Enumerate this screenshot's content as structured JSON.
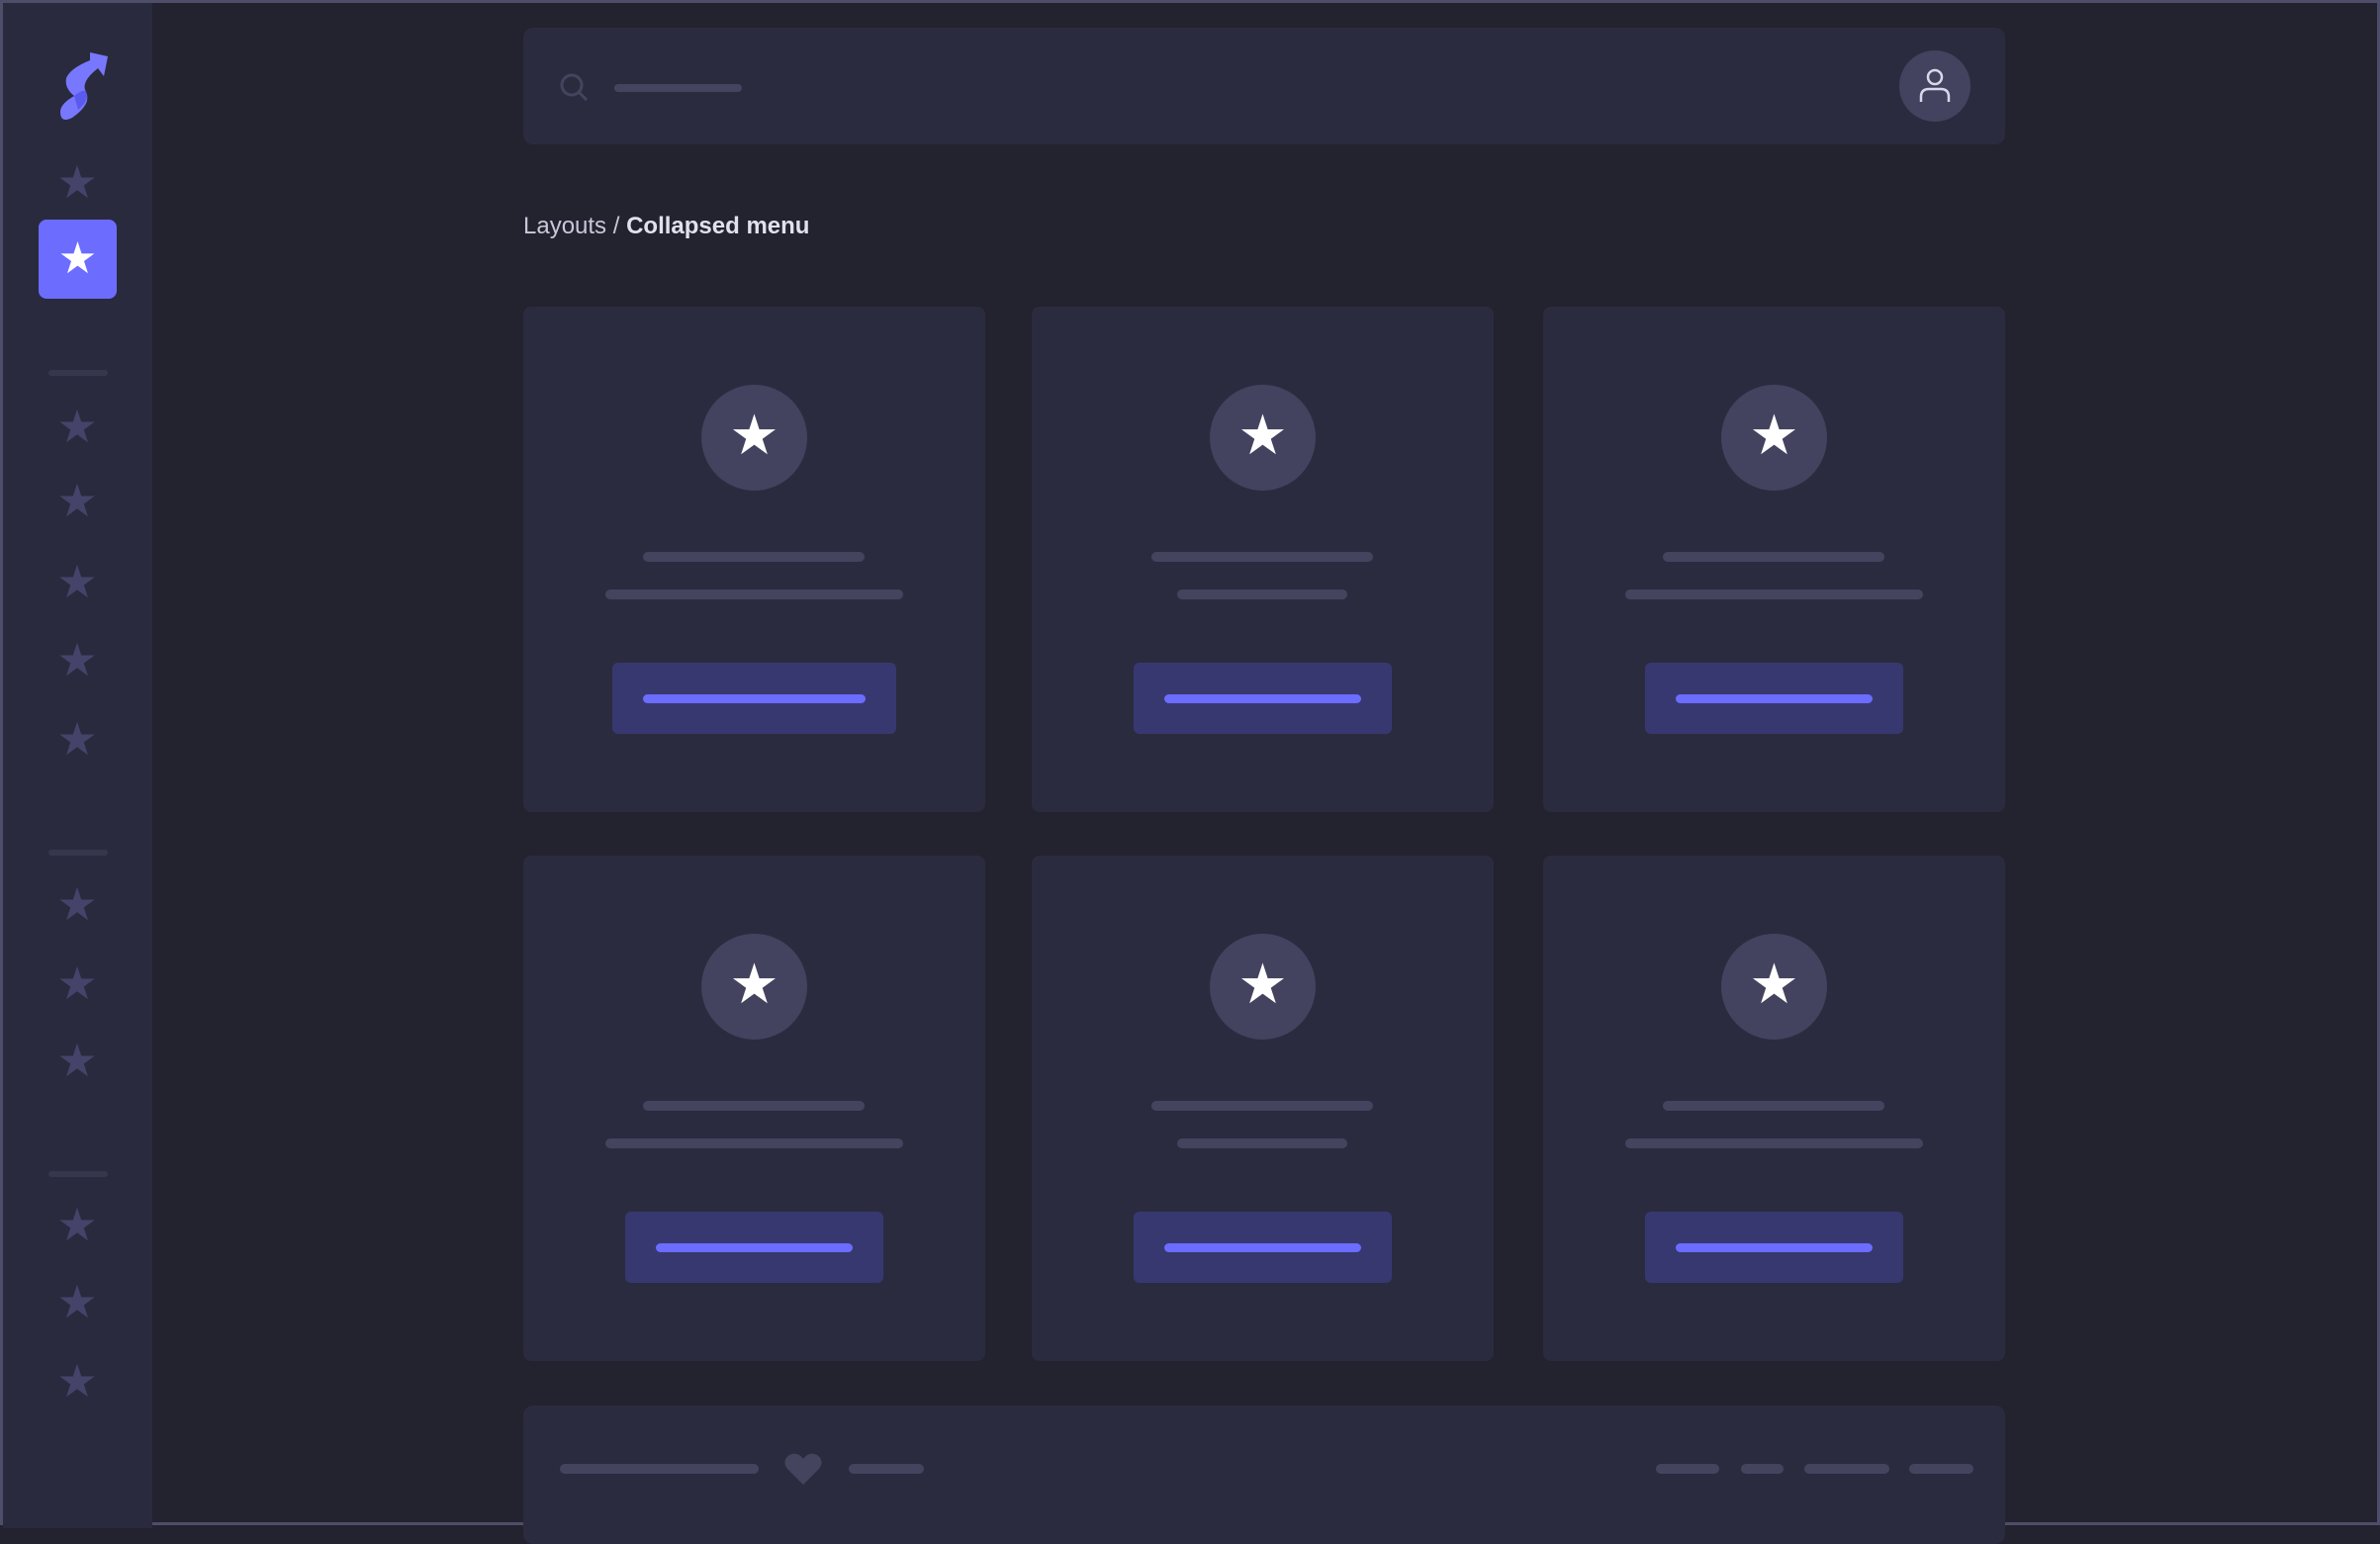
{
  "sidebar": {
    "logo": "S",
    "icons": [
      "star-icon"
    ],
    "active_index": 1,
    "colors": {
      "accent": "#6c6cff",
      "icon": "#44446a"
    }
  },
  "header": {
    "search_icon": "search-icon",
    "avatar_icon": "user-icon"
  },
  "breadcrumb": {
    "parent": "Layouts",
    "separator": "/",
    "current": "Collapsed menu"
  },
  "cards": [
    {
      "icon": "star-icon"
    },
    {
      "icon": "star-icon"
    },
    {
      "icon": "star-icon"
    },
    {
      "icon": "star-icon"
    },
    {
      "icon": "star-icon"
    },
    {
      "icon": "star-icon"
    }
  ],
  "footer": {
    "icon": "heart-icon"
  },
  "colors": {
    "background": "#23222f",
    "surface": "#2b2b40",
    "accent": "#6c6cff",
    "button": "#383870"
  }
}
